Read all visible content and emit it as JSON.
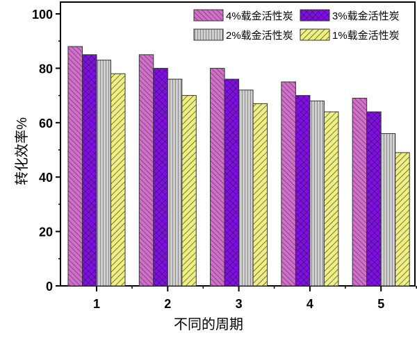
{
  "chart_data": {
    "type": "bar",
    "title": "",
    "xlabel": "不同的周期",
    "ylabel": "转化效率%",
    "categories": [
      "1",
      "2",
      "3",
      "4",
      "5"
    ],
    "ylim": [
      0,
      100
    ],
    "yticks": [
      "0",
      "20",
      "40",
      "60",
      "80",
      "100"
    ],
    "grid": false,
    "legend_position": "top-right",
    "series": [
      {
        "name": "4%载金活性炭",
        "values": [
          88,
          85,
          80,
          75,
          69
        ],
        "color": "#d070c8",
        "pattern": "diagonal-back"
      },
      {
        "name": "3%载金活性炭",
        "values": [
          85,
          80,
          76,
          70,
          64
        ],
        "color": "#8010e0",
        "pattern": "crosshatch"
      },
      {
        "name": "2%载金活性炭",
        "values": [
          83,
          76,
          72,
          68,
          56
        ],
        "color": "#c8c8c8",
        "pattern": "vertical"
      },
      {
        "name": "1%载金活性炭",
        "values": [
          78,
          70,
          67,
          64,
          49
        ],
        "color": "#f0f080",
        "pattern": "diagonal-forward"
      }
    ]
  }
}
